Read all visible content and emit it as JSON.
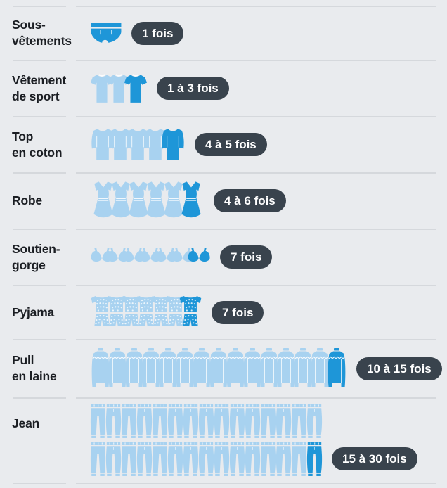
{
  "colors": {
    "background": "#e9ebee",
    "divider": "#d5d8dc",
    "label_text": "#1b1e23",
    "badge_bg": "#39434d",
    "badge_text": "#ffffff",
    "icon_light": "#a8d2f0",
    "icon_dark": "#1e96d8"
  },
  "rows": [
    {
      "label": "Sous-\nvêtements",
      "icon": "briefs",
      "count": 1,
      "badge": "1 fois"
    },
    {
      "label": "Vêtement\nde sport",
      "icon": "shirt",
      "count": 3,
      "badge": "1 à 3 fois"
    },
    {
      "label": "Top\nen coton",
      "icon": "top",
      "count": 5,
      "badge": "4 à 5 fois"
    },
    {
      "label": "Robe",
      "icon": "dress",
      "count": 6,
      "badge": "4 à 6 fois"
    },
    {
      "label": "Soutien-\ngorge",
      "icon": "bra",
      "count": 7,
      "badge": "7 fois"
    },
    {
      "label": "Pyjama",
      "icon": "pyjama",
      "count": 7,
      "badge": "7 fois"
    },
    {
      "label": "Pull\nen laine",
      "icon": "sweater",
      "count": 15,
      "badge": "10 à 15 fois"
    },
    {
      "label": "Jean",
      "icon": "jeans",
      "count": 30,
      "icons_per_line": 15,
      "badge": "15 à 30 fois"
    }
  ],
  "chart_data": {
    "type": "pictogram",
    "categories": [
      "Sous-vêtements",
      "Vêtement de sport",
      "Top en coton",
      "Robe",
      "Soutien-gorge",
      "Pyjama",
      "Pull en laine",
      "Jean"
    ],
    "values": [
      1,
      3,
      5,
      6,
      7,
      7,
      15,
      30
    ],
    "value_labels": [
      "1 fois",
      "1 à 3 fois",
      "4 à 5 fois",
      "4 à 6 fois",
      "7 fois",
      "7 fois",
      "10 à 15 fois",
      "15 à 30 fois"
    ],
    "ranges": [
      [
        1,
        1
      ],
      [
        1,
        3
      ],
      [
        4,
        5
      ],
      [
        4,
        6
      ],
      [
        7,
        7
      ],
      [
        7,
        7
      ],
      [
        10,
        15
      ],
      [
        15,
        30
      ]
    ],
    "icon_count_per_category": [
      1,
      3,
      5,
      6,
      7,
      7,
      15,
      30
    ],
    "highlight_rule": "last icon of each category is dark blue, others light blue",
    "legend_position": "none",
    "grid": false
  }
}
